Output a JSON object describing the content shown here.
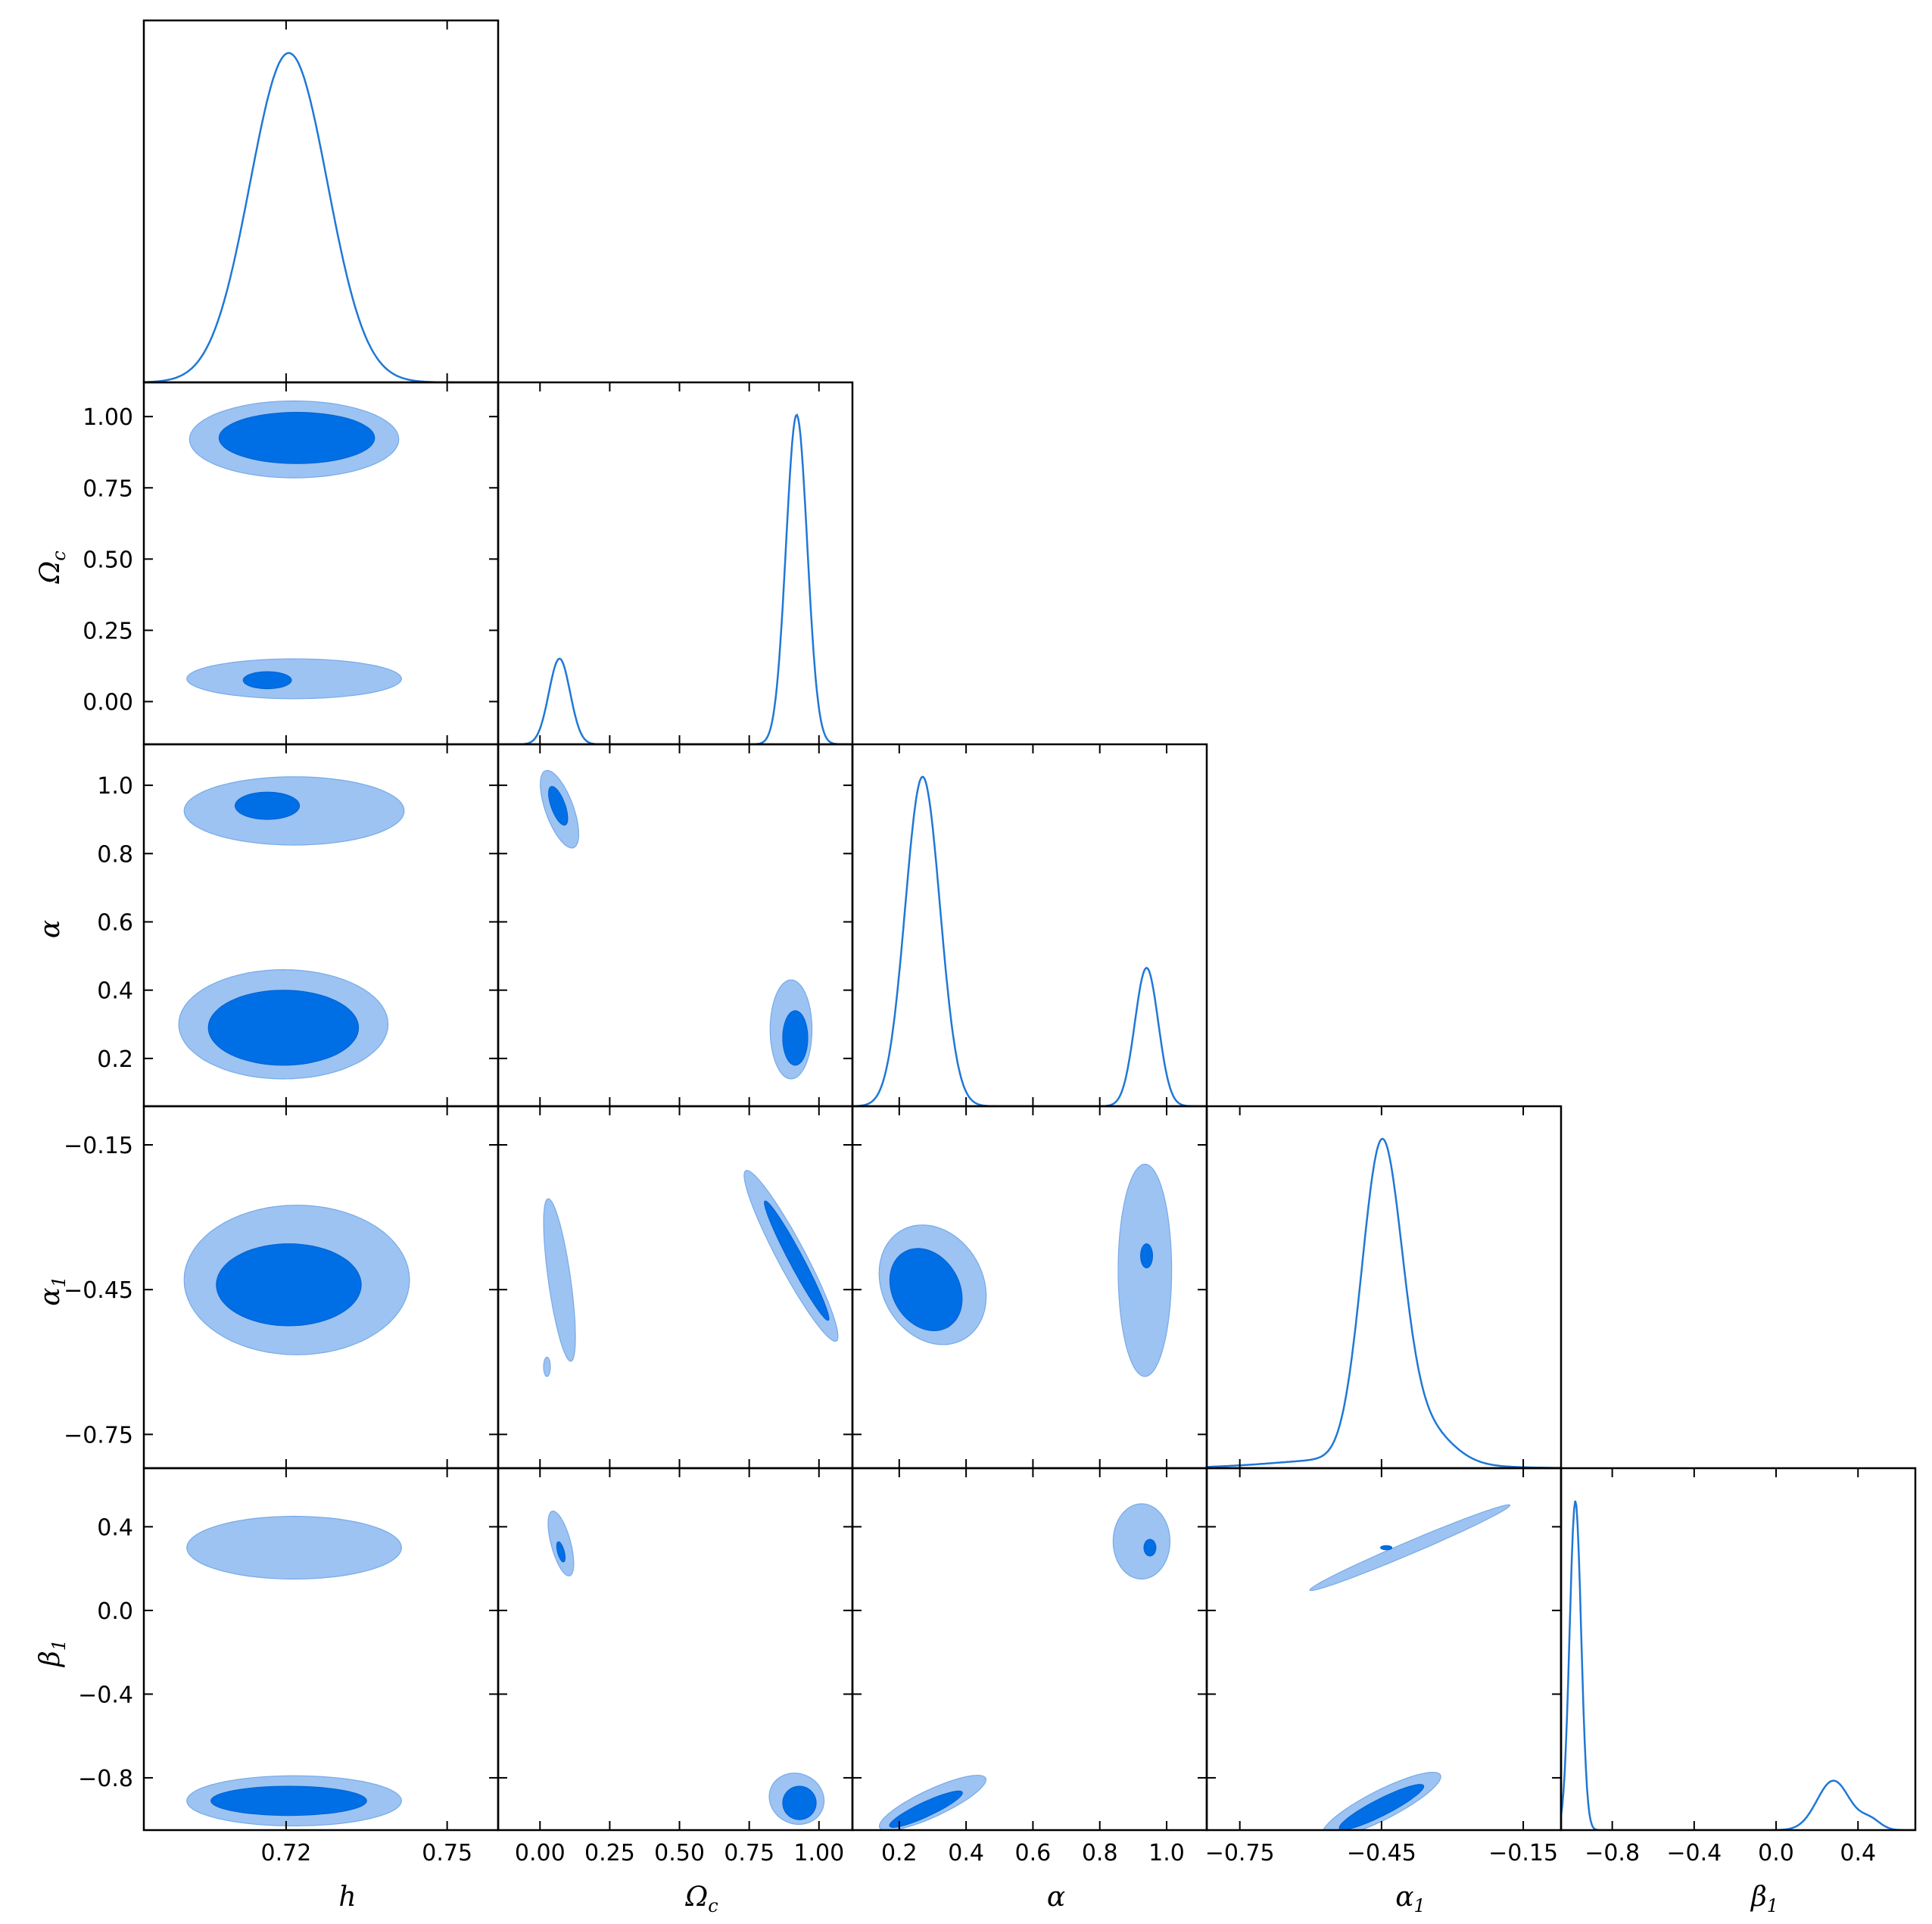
{
  "chart_data": {
    "type": "corner-plot (triangle: 1D marginal densities on diagonal, 2D confidence contours off-diagonal)",
    "parameters": [
      {
        "key": "h",
        "label": "h",
        "sub": "",
        "range": [
          0.6935,
          0.7595
        ],
        "ticks": [
          0.72,
          0.75
        ],
        "tick_labels": [
          "0.72",
          "0.75"
        ]
      },
      {
        "key": "Oc",
        "label": "Ω",
        "sub": "c",
        "range": [
          -0.15,
          1.12
        ],
        "ticks": [
          0.0,
          0.25,
          0.5,
          0.75,
          1.0
        ],
        "tick_labels": [
          "0.00",
          "0.25",
          "0.50",
          "0.75",
          "1.00"
        ]
      },
      {
        "key": "alpha",
        "label": "α",
        "sub": "",
        "range": [
          0.06,
          1.12
        ],
        "ticks": [
          0.2,
          0.4,
          0.6,
          0.8,
          1.0
        ],
        "tick_labels": [
          "0.2",
          "0.4",
          "0.6",
          "0.8",
          "1.0"
        ]
      },
      {
        "key": "alpha1",
        "label": "α",
        "sub": "1",
        "range": [
          -0.82,
          -0.07
        ],
        "ticks": [
          -0.75,
          -0.45,
          -0.15
        ],
        "tick_labels": [
          "−0.75",
          "−0.45",
          "−0.15"
        ]
      },
      {
        "key": "beta1",
        "label": "β",
        "sub": "1",
        "range": [
          -1.05,
          0.68
        ],
        "ticks": [
          -0.8,
          -0.4,
          0.0,
          0.4
        ],
        "tick_labels": [
          "−0.8",
          "−0.4",
          "0.0",
          "0.4"
        ]
      }
    ],
    "marginals": {
      "h": [
        {
          "mu": 0.7205,
          "sigma": 0.0072,
          "amp": 1.0
        }
      ],
      "Oc": [
        {
          "mu": 0.07,
          "sigma": 0.038,
          "amp": 0.26
        },
        {
          "mu": 0.92,
          "sigma": 0.038,
          "amp": 1.0
        }
      ],
      "alpha": [
        {
          "mu": 0.27,
          "sigma": 0.052,
          "amp": 1.0
        },
        {
          "mu": 0.94,
          "sigma": 0.035,
          "amp": 0.42
        }
      ],
      "alpha1": [
        {
          "mu": -0.45,
          "sigma": 0.042,
          "amp": 0.95
        },
        {
          "mu": -0.37,
          "sigma": 0.06,
          "amp": 0.12
        },
        {
          "mu": -0.5,
          "sigma": 0.16,
          "amp": 0.03
        }
      ],
      "beta1": [
        {
          "mu": -0.98,
          "sigma": 0.028,
          "amp": 1.0
        },
        {
          "mu": 0.28,
          "sigma": 0.08,
          "amp": 0.15
        },
        {
          "mu": 0.46,
          "sigma": 0.05,
          "amp": 0.03
        }
      ]
    },
    "contours": {
      "Oc|h": [
        {
          "level": "outer",
          "cx": 0.7215,
          "cy": 0.92,
          "rx": 0.0195,
          "ry": 0.135,
          "rot": 0
        },
        {
          "level": "inner",
          "cx": 0.722,
          "cy": 0.925,
          "rx": 0.0145,
          "ry": 0.09,
          "rot": 0
        },
        {
          "level": "outer",
          "cx": 0.7215,
          "cy": 0.08,
          "rx": 0.02,
          "ry": 0.07,
          "rot": 0
        },
        {
          "level": "inner",
          "cx": 0.7165,
          "cy": 0.075,
          "rx": 0.0045,
          "ry": 0.03,
          "rot": 0
        }
      ],
      "alpha|h": [
        {
          "level": "outer",
          "cx": 0.7215,
          "cy": 0.925,
          "rx": 0.0205,
          "ry": 0.1,
          "rot": 0
        },
        {
          "level": "inner",
          "cx": 0.7165,
          "cy": 0.94,
          "rx": 0.006,
          "ry": 0.04,
          "rot": 0
        },
        {
          "level": "outer",
          "cx": 0.7195,
          "cy": 0.3,
          "rx": 0.0195,
          "ry": 0.16,
          "rot": 0
        },
        {
          "level": "inner",
          "cx": 0.7195,
          "cy": 0.29,
          "rx": 0.014,
          "ry": 0.11,
          "rot": 0
        }
      ],
      "alpha|Oc": [
        {
          "level": "outer",
          "cx": 0.07,
          "cy": 0.93,
          "rx": 0.05,
          "ry": 0.12,
          "rot": -20
        },
        {
          "level": "inner",
          "cx": 0.065,
          "cy": 0.94,
          "rx": 0.025,
          "ry": 0.06,
          "rot": -20
        },
        {
          "level": "outer",
          "cx": 0.9,
          "cy": 0.285,
          "rx": 0.075,
          "ry": 0.145,
          "rot": 0
        },
        {
          "level": "inner",
          "cx": 0.915,
          "cy": 0.26,
          "rx": 0.045,
          "ry": 0.08,
          "rot": 0
        }
      ],
      "alpha1|h": [
        {
          "level": "outer",
          "cx": 0.722,
          "cy": -0.43,
          "rx": 0.021,
          "ry": 0.155,
          "rot": 0
        },
        {
          "level": "inner",
          "cx": 0.7205,
          "cy": -0.44,
          "rx": 0.0135,
          "ry": 0.085,
          "rot": 0
        }
      ],
      "alpha1|Oc": [
        {
          "level": "outer",
          "cx": 0.07,
          "cy": -0.43,
          "rx": 0.04,
          "ry": 0.17,
          "rot": -8
        },
        {
          "level": "outer",
          "cx": 0.025,
          "cy": -0.61,
          "rx": 0.012,
          "ry": 0.02,
          "rot": 0
        },
        {
          "level": "outer",
          "cx": 0.9,
          "cy": -0.38,
          "rx": 0.05,
          "ry": 0.2,
          "rot": -28
        },
        {
          "level": "inner",
          "cx": 0.92,
          "cy": -0.39,
          "rx": 0.025,
          "ry": 0.14,
          "rot": -28
        }
      ],
      "alpha1|alpha": [
        {
          "level": "outer",
          "cx": 0.3,
          "cy": -0.44,
          "rx": 0.15,
          "ry": 0.13,
          "rot": -30
        },
        {
          "level": "inner",
          "cx": 0.28,
          "cy": -0.45,
          "rx": 0.1,
          "ry": 0.09,
          "rot": -30
        },
        {
          "level": "outer",
          "cx": 0.935,
          "cy": -0.41,
          "rx": 0.08,
          "ry": 0.22,
          "rot": 0
        },
        {
          "level": "inner",
          "cx": 0.94,
          "cy": -0.38,
          "rx": 0.018,
          "ry": 0.025,
          "rot": 0
        }
      ],
      "beta1|h": [
        {
          "level": "outer",
          "cx": 0.7215,
          "cy": 0.3,
          "rx": 0.02,
          "ry": 0.15,
          "rot": 0
        },
        {
          "level": "outer",
          "cx": 0.7215,
          "cy": -0.91,
          "rx": 0.02,
          "ry": 0.12,
          "rot": 0
        },
        {
          "level": "inner",
          "cx": 0.7205,
          "cy": -0.91,
          "rx": 0.0145,
          "ry": 0.07,
          "rot": 0
        }
      ],
      "beta1|Oc": [
        {
          "level": "outer",
          "cx": 0.075,
          "cy": 0.32,
          "rx": 0.035,
          "ry": 0.16,
          "rot": -15
        },
        {
          "level": "inner",
          "cx": 0.075,
          "cy": 0.28,
          "rx": 0.012,
          "ry": 0.05,
          "rot": -15
        },
        {
          "level": "outer",
          "cx": 0.92,
          "cy": -0.9,
          "rx": 0.1,
          "ry": 0.12,
          "rot": 25
        },
        {
          "level": "inner",
          "cx": 0.93,
          "cy": -0.92,
          "rx": 0.06,
          "ry": 0.08,
          "rot": 25
        }
      ],
      "beta1|alpha": [
        {
          "level": "outer",
          "cx": 0.925,
          "cy": 0.33,
          "rx": 0.085,
          "ry": 0.18,
          "rot": 0
        },
        {
          "level": "inner",
          "cx": 0.95,
          "cy": 0.3,
          "rx": 0.018,
          "ry": 0.04,
          "rot": 0
        },
        {
          "level": "outer",
          "cx": 0.3,
          "cy": -0.92,
          "rx": 0.175,
          "ry": 0.065,
          "rot": -25
        },
        {
          "level": "inner",
          "cx": 0.28,
          "cy": -0.95,
          "rx": 0.12,
          "ry": 0.035,
          "rot": -25
        }
      ],
      "beta1|alpha1": [
        {
          "level": "outer",
          "cx": -0.39,
          "cy": 0.3,
          "rx": 0.23,
          "ry": 0.03,
          "rot": -23
        },
        {
          "level": "inner",
          "cx": -0.44,
          "cy": 0.3,
          "rx": 0.012,
          "ry": 0.01,
          "rot": 0
        },
        {
          "level": "outer",
          "cx": -0.45,
          "cy": -0.93,
          "rx": 0.14,
          "ry": 0.07,
          "rot": -27
        },
        {
          "level": "inner",
          "cx": -0.45,
          "cy": -0.94,
          "rx": 0.1,
          "ry": 0.04,
          "rot": -27
        }
      ]
    },
    "colors": {
      "line": "#1f78d6",
      "inner_fill": "#006fe6",
      "outer_fill": "#9cc3f2"
    },
    "grid": false,
    "legend": "none"
  }
}
